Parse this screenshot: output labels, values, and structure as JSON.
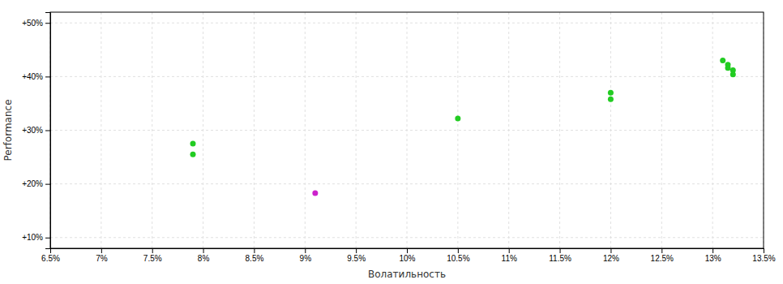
{
  "chart_data": {
    "type": "scatter",
    "xlabel": "Волатильность",
    "ylabel": "Performance",
    "xlim": [
      0.065,
      0.135
    ],
    "ylim": [
      0.08,
      0.52
    ],
    "xticks": [
      {
        "value": 0.065,
        "label": "6.5%"
      },
      {
        "value": 0.07,
        "label": "7%"
      },
      {
        "value": 0.075,
        "label": "7.5%"
      },
      {
        "value": 0.08,
        "label": "8%"
      },
      {
        "value": 0.085,
        "label": "8.5%"
      },
      {
        "value": 0.09,
        "label": "9%"
      },
      {
        "value": 0.095,
        "label": "9.5%"
      },
      {
        "value": 0.1,
        "label": "10%"
      },
      {
        "value": 0.105,
        "label": "10.5%"
      },
      {
        "value": 0.11,
        "label": "11%"
      },
      {
        "value": 0.115,
        "label": "11.5%"
      },
      {
        "value": 0.12,
        "label": "12%"
      },
      {
        "value": 0.125,
        "label": "12.5%"
      },
      {
        "value": 0.13,
        "label": "13%"
      },
      {
        "value": 0.135,
        "label": "13.5%"
      }
    ],
    "yticks": [
      {
        "value": 0.1,
        "label": "+10%"
      },
      {
        "value": 0.2,
        "label": "+20%"
      },
      {
        "value": 0.3,
        "label": "+30%"
      },
      {
        "value": 0.4,
        "label": "+40%"
      },
      {
        "value": 0.5,
        "label": "+50%"
      }
    ],
    "grid": true,
    "series": [
      {
        "color": "#22cc22",
        "x": [
          0.079,
          0.079,
          0.105,
          0.12,
          0.12,
          0.131,
          0.1315,
          0.1315,
          0.132,
          0.132
        ],
        "values": [
          0.275,
          0.255,
          0.322,
          0.37,
          0.358,
          0.43,
          0.422,
          0.416,
          0.412,
          0.404
        ]
      },
      {
        "color": "#cc22cc",
        "x": [
          0.091
        ],
        "values": [
          0.183
        ]
      }
    ]
  }
}
